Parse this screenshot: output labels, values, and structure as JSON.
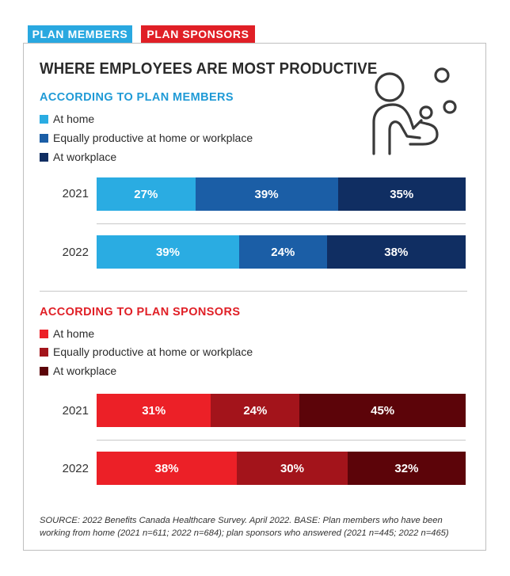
{
  "tabs": {
    "members": "PLAN MEMBERS",
    "sponsors": "PLAN SPONSORS"
  },
  "colors": {
    "member_tab": "#29a8e0",
    "sponsor_tab": "#e01f26",
    "members": [
      "#2aace2",
      "#1b5ea6",
      "#102e62"
    ],
    "sponsors": [
      "#ec2027",
      "#a3141b",
      "#5c0409"
    ],
    "members_heading": "#1f9ad6",
    "sponsors_heading": "#e01f26"
  },
  "icon": "person-juggling-icon",
  "chart_data": [
    {
      "type": "bar",
      "stacked": true,
      "orientation": "horizontal",
      "title": "WHERE EMPLOYEES ARE MOST PRODUCTIVE",
      "subtitle": "ACCORDING TO PLAN MEMBERS",
      "categories": [
        "2021",
        "2022"
      ],
      "series": [
        {
          "name": "At home",
          "values": [
            27,
            39
          ],
          "labels": [
            "27%",
            "39%"
          ]
        },
        {
          "name": "Equally productive at home or workplace",
          "values": [
            39,
            24
          ],
          "labels": [
            "39%",
            "24%"
          ]
        },
        {
          "name": "At workplace",
          "values": [
            35,
            38
          ],
          "labels": [
            "35%",
            "38%"
          ]
        }
      ]
    },
    {
      "type": "bar",
      "stacked": true,
      "orientation": "horizontal",
      "subtitle": "ACCORDING TO PLAN SPONSORS",
      "categories": [
        "2021",
        "2022"
      ],
      "series": [
        {
          "name": "At home",
          "values": [
            31,
            38
          ],
          "labels": [
            "31%",
            "38%"
          ]
        },
        {
          "name": "Equally productive at home or workplace",
          "values": [
            24,
            30
          ],
          "labels": [
            "24%",
            "30%"
          ]
        },
        {
          "name": "At workplace",
          "values": [
            45,
            32
          ],
          "labels": [
            "45%",
            "32%"
          ]
        }
      ]
    }
  ],
  "source": "SOURCE: 2022 Benefits Canada Healthcare Survey. April 2022. BASE: Plan members who have been working from home (2021 n=611; 2022 n=684); plan sponsors who answered (2021 n=445; 2022 n=465)"
}
